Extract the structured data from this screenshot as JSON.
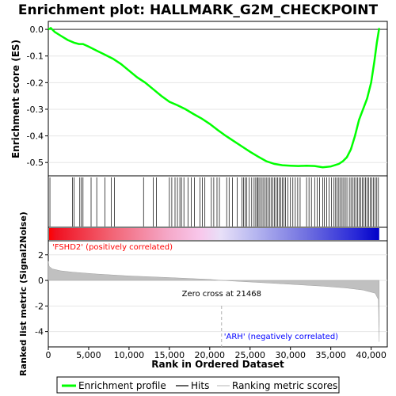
{
  "chart_data": {
    "type": "line",
    "title": "Enrichment plot: HALLMARK_G2M_CHECKPOINT",
    "panels": {
      "enrichment": {
        "ylabel": "Enrichment score (ES)",
        "ylim": [
          -0.55,
          0.03
        ],
        "yticks": [
          0.0,
          -0.1,
          -0.2,
          -0.3,
          -0.4,
          -0.5
        ],
        "ytick_labels": [
          "0.0",
          "-0.1",
          "-0.2",
          "-0.3",
          "-0.4",
          "-0.5"
        ],
        "curve_color": "#00ff00",
        "points": [
          [
            0,
            0.0
          ],
          [
            300,
            0.005
          ],
          [
            800,
            -0.01
          ],
          [
            1600,
            -0.025
          ],
          [
            2400,
            -0.04
          ],
          [
            3200,
            -0.05
          ],
          [
            3800,
            -0.055
          ],
          [
            4300,
            -0.055
          ],
          [
            5000,
            -0.065
          ],
          [
            6000,
            -0.08
          ],
          [
            7000,
            -0.095
          ],
          [
            8000,
            -0.11
          ],
          [
            9000,
            -0.13
          ],
          [
            10000,
            -0.155
          ],
          [
            11000,
            -0.18
          ],
          [
            12000,
            -0.2
          ],
          [
            13000,
            -0.225
          ],
          [
            14000,
            -0.25
          ],
          [
            15000,
            -0.272
          ],
          [
            16000,
            -0.285
          ],
          [
            17000,
            -0.3
          ],
          [
            18000,
            -0.318
          ],
          [
            19000,
            -0.335
          ],
          [
            20000,
            -0.355
          ],
          [
            21000,
            -0.378
          ],
          [
            22000,
            -0.4
          ],
          [
            23000,
            -0.42
          ],
          [
            24000,
            -0.44
          ],
          [
            25000,
            -0.46
          ],
          [
            26000,
            -0.478
          ],
          [
            27000,
            -0.495
          ],
          [
            28000,
            -0.505
          ],
          [
            29000,
            -0.51
          ],
          [
            30000,
            -0.512
          ],
          [
            31000,
            -0.513
          ],
          [
            32000,
            -0.512
          ],
          [
            33000,
            -0.513
          ],
          [
            34000,
            -0.518
          ],
          [
            35000,
            -0.515
          ],
          [
            36000,
            -0.505
          ],
          [
            36500,
            -0.495
          ],
          [
            37000,
            -0.48
          ],
          [
            37500,
            -0.45
          ],
          [
            38000,
            -0.4
          ],
          [
            38500,
            -0.34
          ],
          [
            39000,
            -0.3
          ],
          [
            39500,
            -0.26
          ],
          [
            40000,
            -0.2
          ],
          [
            40400,
            -0.12
          ],
          [
            40700,
            -0.05
          ],
          [
            41000,
            0.005
          ]
        ]
      },
      "ranked_metric": {
        "ylabel": "Ranked list metric (Signal2Noise)",
        "ylim": [
          -5.2,
          3.1
        ],
        "yticks": [
          2,
          0,
          -2,
          -4
        ],
        "ytick_labels": [
          "2",
          "0",
          "-2",
          "-4"
        ],
        "fill_color": "#c0c0c0",
        "zero_cross": 21468,
        "zero_cross_label": "Zero cross at 21468",
        "positive_label": "'FSHD2' (positively correlated)",
        "negative_label": "'ARH' (negatively correlated)",
        "positive_color": "#ff0000",
        "negative_color": "#0000ff",
        "points": [
          [
            0,
            1.5
          ],
          [
            100,
            1.1
          ],
          [
            500,
            0.9
          ],
          [
            1500,
            0.75
          ],
          [
            3000,
            0.65
          ],
          [
            6000,
            0.5
          ],
          [
            10000,
            0.35
          ],
          [
            15000,
            0.22
          ],
          [
            20000,
            0.08
          ],
          [
            21468,
            0.0
          ],
          [
            25000,
            -0.12
          ],
          [
            30000,
            -0.3
          ],
          [
            34000,
            -0.45
          ],
          [
            37000,
            -0.6
          ],
          [
            39000,
            -0.75
          ],
          [
            40500,
            -1.0
          ],
          [
            40900,
            -1.5
          ],
          [
            41000,
            -4.8
          ]
        ]
      }
    },
    "xlabel": "Rank in Ordered Dataset",
    "xlim": [
      0,
      42000
    ],
    "xticks": [
      0,
      5000,
      10000,
      15000,
      20000,
      25000,
      30000,
      35000,
      40000
    ],
    "xtick_labels": [
      "0",
      "5,000",
      "10,000",
      "15,000",
      "20,000",
      "25,000",
      "30,000",
      "35,000",
      "40,000"
    ],
    "hits": [
      200,
      3000,
      3200,
      3900,
      4100,
      4300,
      5300,
      6000,
      7000,
      7800,
      8200,
      11800,
      13000,
      13400,
      15000,
      15300,
      15700,
      16000,
      16300,
      16500,
      16800,
      17300,
      17700,
      18100,
      18800,
      19100,
      19400,
      20200,
      20500,
      20900,
      21200,
      22100,
      22400,
      22800,
      23400,
      24000,
      24200,
      24400,
      24600,
      24900,
      25200,
      25500,
      25700,
      25900,
      26000,
      26200,
      26400,
      26600,
      26800,
      27000,
      27200,
      27400,
      27600,
      27800,
      28000,
      28200,
      28400,
      28600,
      28800,
      29000,
      29200,
      29400,
      29700,
      30000,
      30300,
      30600,
      30900,
      31200,
      32000,
      32300,
      32600,
      33000,
      33300,
      33600,
      34000,
      34200,
      34500,
      34800,
      35100,
      35400,
      35600,
      35800,
      36000,
      36200,
      36400,
      36600,
      36800,
      37000,
      37300,
      37500,
      37700,
      37900,
      38100,
      38300,
      38500,
      38700,
      38900,
      39100,
      39300,
      39500,
      39700,
      39900,
      40100,
      40300,
      40500,
      40700,
      40900
    ],
    "legend": {
      "placement": "bottom",
      "entries": [
        {
          "label": "Enrichment profile",
          "color": "#00ff00",
          "style": "line"
        },
        {
          "label": "Hits",
          "color": "#000000",
          "style": "line"
        },
        {
          "label": "Ranking metric scores",
          "color": "#c0c0c0",
          "style": "line"
        }
      ]
    }
  }
}
